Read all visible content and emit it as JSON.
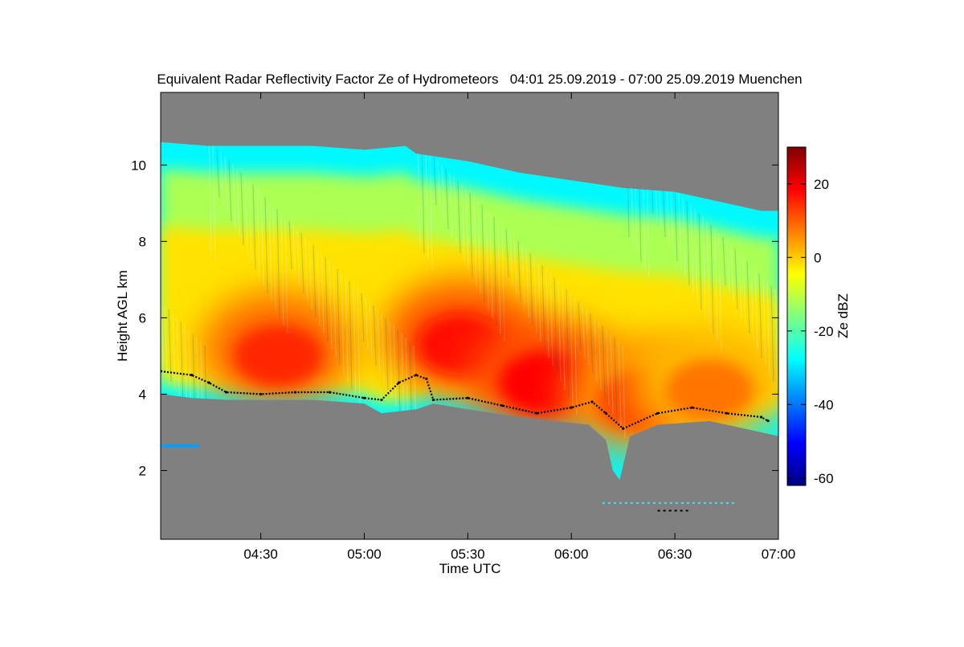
{
  "chart_data": {
    "type": "heatmap",
    "title": "Equivalent Radar Reflectivity Factor Ze of Hydrometeors   04:01 25.09.2019 - 07:00 25.09.2019 Muenchen",
    "xlabel": "Time UTC",
    "ylabel": "Height AGL km",
    "colorbar_label": "Ze dBZ",
    "xlim": [
      "04:01",
      "07:00"
    ],
    "ylim": [
      0.2,
      11.9
    ],
    "x_ticks": [
      "04:30",
      "05:00",
      "05:30",
      "06:00",
      "06:30",
      "07:00"
    ],
    "y_ticks": [
      2,
      4,
      6,
      8,
      10
    ],
    "colorbar_range": [
      -62,
      30
    ],
    "colorbar_ticks": [
      20,
      0,
      -20,
      -40,
      -60
    ],
    "background_color": "#808080",
    "colormap": [
      "#00007f",
      "#0000ff",
      "#0080ff",
      "#00ffff",
      "#80ff80",
      "#ffff00",
      "#ff8000",
      "#ff0000",
      "#7f0000"
    ],
    "echo_top_km": [
      [
        "04:01",
        10.6
      ],
      [
        "04:15",
        10.5
      ],
      [
        "04:30",
        10.5
      ],
      [
        "04:45",
        10.5
      ],
      [
        "05:00",
        10.4
      ],
      [
        "05:12",
        10.5
      ],
      [
        "05:15",
        10.3
      ],
      [
        "05:30",
        10.1
      ],
      [
        "05:45",
        9.8
      ],
      [
        "06:00",
        9.6
      ],
      [
        "06:15",
        9.4
      ],
      [
        "06:30",
        9.3
      ],
      [
        "06:45",
        9.0
      ],
      [
        "06:55",
        8.8
      ],
      [
        "07:00",
        8.8
      ]
    ],
    "echo_base_km": [
      [
        "04:01",
        4.0
      ],
      [
        "04:10",
        3.9
      ],
      [
        "04:20",
        3.85
      ],
      [
        "04:30",
        3.85
      ],
      [
        "04:45",
        3.85
      ],
      [
        "05:00",
        3.75
      ],
      [
        "05:05",
        3.5
      ],
      [
        "05:15",
        3.6
      ],
      [
        "05:20",
        3.75
      ],
      [
        "05:30",
        3.6
      ],
      [
        "05:45",
        3.4
      ],
      [
        "05:55",
        3.3
      ],
      [
        "06:05",
        3.2
      ],
      [
        "06:10",
        2.8
      ],
      [
        "06:12",
        2.0
      ],
      [
        "06:14",
        1.75
      ],
      [
        "06:17",
        2.9
      ],
      [
        "06:25",
        3.2
      ],
      [
        "06:40",
        3.3
      ],
      [
        "06:55",
        3.0
      ],
      [
        "07:00",
        2.9
      ]
    ],
    "core": [
      {
        "time": "04:35",
        "height_km": 5.2,
        "ze_dbz": 15
      },
      {
        "time": "05:28",
        "height_km": 5.5,
        "ze_dbz": 17
      },
      {
        "time": "05:52",
        "height_km": 4.5,
        "ze_dbz": 18
      },
      {
        "time": "06:20",
        "height_km": 4.0,
        "ze_dbz": 12
      },
      {
        "time": "06:40",
        "height_km": 4.3,
        "ze_dbz": 8
      }
    ],
    "melting_layer_km": [
      [
        "04:01",
        4.6
      ],
      [
        "04:10",
        4.5
      ],
      [
        "04:15",
        4.3
      ],
      [
        "04:20",
        4.05
      ],
      [
        "04:30",
        4.0
      ],
      [
        "04:40",
        4.05
      ],
      [
        "04:50",
        4.05
      ],
      [
        "05:00",
        3.9
      ],
      [
        "05:05",
        3.85
      ],
      [
        "05:10",
        4.3
      ],
      [
        "05:15",
        4.5
      ],
      [
        "05:18",
        4.4
      ],
      [
        "05:20",
        3.85
      ],
      [
        "05:30",
        3.9
      ],
      [
        "05:40",
        3.7
      ],
      [
        "05:50",
        3.5
      ],
      [
        "06:00",
        3.65
      ],
      [
        "06:06",
        3.8
      ],
      [
        "06:10",
        3.5
      ],
      [
        "06:15",
        3.1
      ],
      [
        "06:25",
        3.5
      ],
      [
        "06:35",
        3.65
      ],
      [
        "06:45",
        3.5
      ],
      [
        "06:55",
        3.4
      ],
      [
        "06:57",
        3.3
      ]
    ],
    "low_echoes": [
      {
        "start": "04:01",
        "end": "04:12",
        "height_km": 2.65
      },
      {
        "start": "06:25",
        "end": "06:34",
        "height_km": 0.95
      },
      {
        "start": "06:09",
        "end": "06:48",
        "height_km": 1.15
      }
    ]
  }
}
